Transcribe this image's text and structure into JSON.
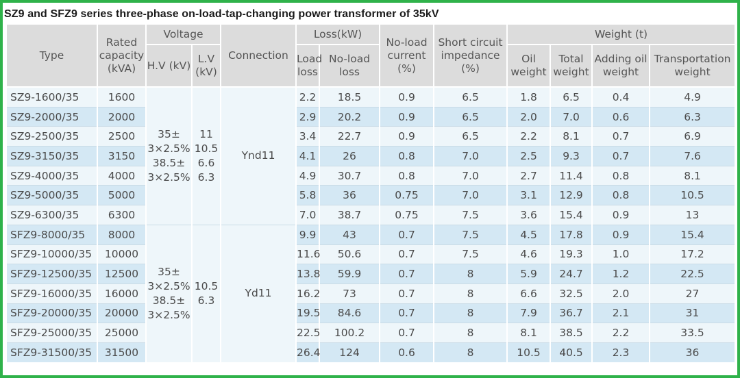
{
  "title": "SZ9 and SFZ9 series three-phase on-load-tap-changing power transformer of 35kV",
  "headers": {
    "type": "Type",
    "rated": "Rated capacity (kVA)",
    "voltage": "Voltage",
    "hv": "H.V (kV)",
    "lv": "L.V (kV)",
    "connection": "Connection",
    "loss": "Loss(kW)",
    "load_loss": "Load loss",
    "noload_loss": "No-load loss",
    "noload_current": "No-load current (%)",
    "short_circuit": "Short circuit impedance (%)",
    "weight": "Weight (t)",
    "oil": "Oil weight",
    "total": "Total weight",
    "adding": "Adding oil weight",
    "transport": "Transportation weight"
  },
  "groups": [
    {
      "hv": "35±\n3×2.5%\n38.5±\n3×2.5%",
      "lv": "11\n10.5\n6.6\n6.3",
      "connection": "Ynd11",
      "rows": 7
    },
    {
      "hv": "35±\n3×2.5%\n38.5±\n3×2.5%",
      "lv": "10.5\n6.3",
      "connection": "Yd11",
      "rows": 7
    }
  ],
  "rows": [
    [
      "SZ9-1600/35",
      "1600",
      "2.2",
      "18.5",
      "0.9",
      "6.5",
      "1.8",
      "6.5",
      "0.4",
      "4.9"
    ],
    [
      "SZ9-2000/35",
      "2000",
      "2.9",
      "20.2",
      "0.9",
      "6.5",
      "2.0",
      "7.0",
      "0.6",
      "6.3"
    ],
    [
      "SZ9-2500/35",
      "2500",
      "3.4",
      "22.7",
      "0.9",
      "6.5",
      "2.2",
      "8.1",
      "0.7",
      "6.9"
    ],
    [
      "SZ9-3150/35",
      "3150",
      "4.1",
      "26",
      "0.8",
      "7.0",
      "2.5",
      "9.3",
      "0.7",
      "7.6"
    ],
    [
      "SZ9-4000/35",
      "4000",
      "4.9",
      "30.7",
      "0.8",
      "7.0",
      "2.7",
      "11.4",
      "0.8",
      "8.1"
    ],
    [
      "SZ9-5000/35",
      "5000",
      "5.8",
      "36",
      "0.75",
      "7.0",
      "3.1",
      "12.9",
      "0.8",
      "10.5"
    ],
    [
      "SZ9-6300/35",
      "6300",
      "7.0",
      "38.7",
      "0.75",
      "7.5",
      "3.6",
      "15.4",
      "0.9",
      "13"
    ],
    [
      "SFZ9-8000/35",
      "8000",
      "9.9",
      "43",
      "0.7",
      "7.5",
      "4.5",
      "17.8",
      "0.9",
      "15.4"
    ],
    [
      "SFZ9-10000/35",
      "10000",
      "11.6",
      "50.6",
      "0.7",
      "7.5",
      "4.6",
      "19.3",
      "1.0",
      "17.2"
    ],
    [
      "SFZ9-12500/35",
      "12500",
      "13.8",
      "59.9",
      "0.7",
      "8",
      "5.9",
      "24.7",
      "1.2",
      "22.5"
    ],
    [
      "SFZ9-16000/35",
      "16000",
      "16.2",
      "73",
      "0.7",
      "8",
      "6.6",
      "32.5",
      "2.0",
      "27"
    ],
    [
      "SFZ9-20000/35",
      "20000",
      "19.5",
      "84.6",
      "0.7",
      "8",
      "7.9",
      "36.7",
      "2.1",
      "31"
    ],
    [
      "SFZ9-25000/35",
      "25000",
      "22.5",
      "100.2",
      "0.7",
      "8",
      "8.1",
      "38.5",
      "2.2",
      "33.5"
    ],
    [
      "SFZ9-31500/35",
      "31500",
      "26.4",
      "124",
      "0.6",
      "8",
      "10.5",
      "40.5",
      "2.3",
      "36"
    ]
  ]
}
